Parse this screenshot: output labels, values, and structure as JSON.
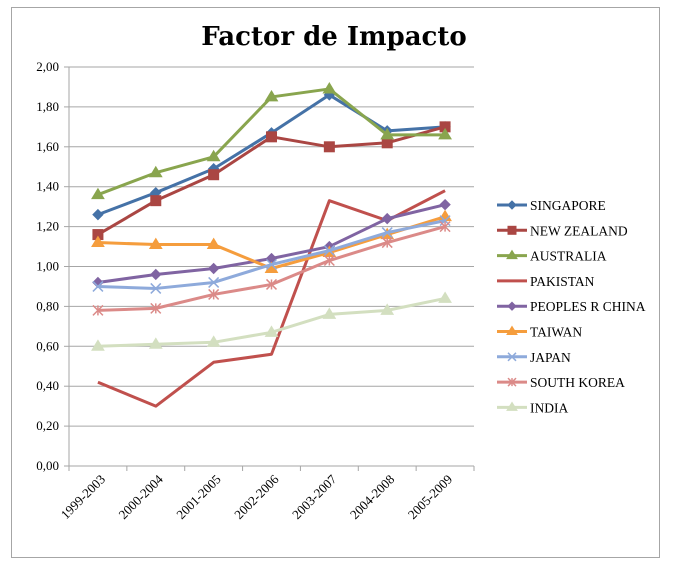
{
  "chart_data": {
    "type": "line",
    "title": "Factor de Impacto",
    "xlabel": "",
    "ylabel": "",
    "categories": [
      "1999-2003",
      "2000-2004",
      "2001-2005",
      "2002-2006",
      "2003-2007",
      "2004-2008",
      "2005-2009"
    ],
    "ylim": [
      0,
      2
    ],
    "yticks": [
      "0,00",
      "0,20",
      "0,40",
      "0,60",
      "0,80",
      "1,00",
      "1,20",
      "1,40",
      "1,60",
      "1,80",
      "2,00"
    ],
    "ytick_values": [
      0,
      0.2,
      0.4,
      0.6,
      0.8,
      1.0,
      1.2,
      1.4,
      1.6,
      1.8,
      2.0
    ],
    "grid": "horizontal",
    "legend_position": "right",
    "series": [
      {
        "name": "SINGAPORE",
        "color": "#4572a7",
        "marker": "diamond",
        "values": [
          1.26,
          1.37,
          1.49,
          1.67,
          1.86,
          1.68,
          1.7
        ]
      },
      {
        "name": "NEW ZEALAND",
        "color": "#aa4643",
        "marker": "square",
        "values": [
          1.16,
          1.33,
          1.46,
          1.65,
          1.6,
          1.62,
          1.7
        ]
      },
      {
        "name": "AUSTRALIA",
        "color": "#89a54e",
        "marker": "triangle",
        "values": [
          1.36,
          1.47,
          1.55,
          1.85,
          1.89,
          1.66,
          1.66
        ]
      },
      {
        "name": "PAKISTAN",
        "color": "#c0504d",
        "marker": "none",
        "values": [
          0.42,
          0.3,
          0.52,
          0.56,
          1.33,
          1.23,
          1.38
        ]
      },
      {
        "name": "PEOPLES R CHINA",
        "color": "#8064a2",
        "marker": "diamond",
        "values": [
          0.92,
          0.96,
          0.99,
          1.04,
          1.1,
          1.24,
          1.31
        ]
      },
      {
        "name": "TAIWAN",
        "color": "#f59d3d",
        "marker": "triangle",
        "values": [
          1.12,
          1.11,
          1.11,
          0.99,
          1.07,
          1.16,
          1.25
        ]
      },
      {
        "name": "JAPAN",
        "color": "#8eaadb",
        "marker": "x",
        "values": [
          0.9,
          0.89,
          0.92,
          1.01,
          1.08,
          1.17,
          1.23
        ]
      },
      {
        "name": "SOUTH KOREA",
        "color": "#db8a88",
        "marker": "star",
        "values": [
          0.78,
          0.79,
          0.86,
          0.91,
          1.03,
          1.12,
          1.2
        ]
      },
      {
        "name": "INDIA",
        "color": "#d3dfc0",
        "marker": "triangle",
        "values": [
          0.6,
          0.61,
          0.62,
          0.67,
          0.76,
          0.78,
          0.84
        ]
      }
    ]
  }
}
